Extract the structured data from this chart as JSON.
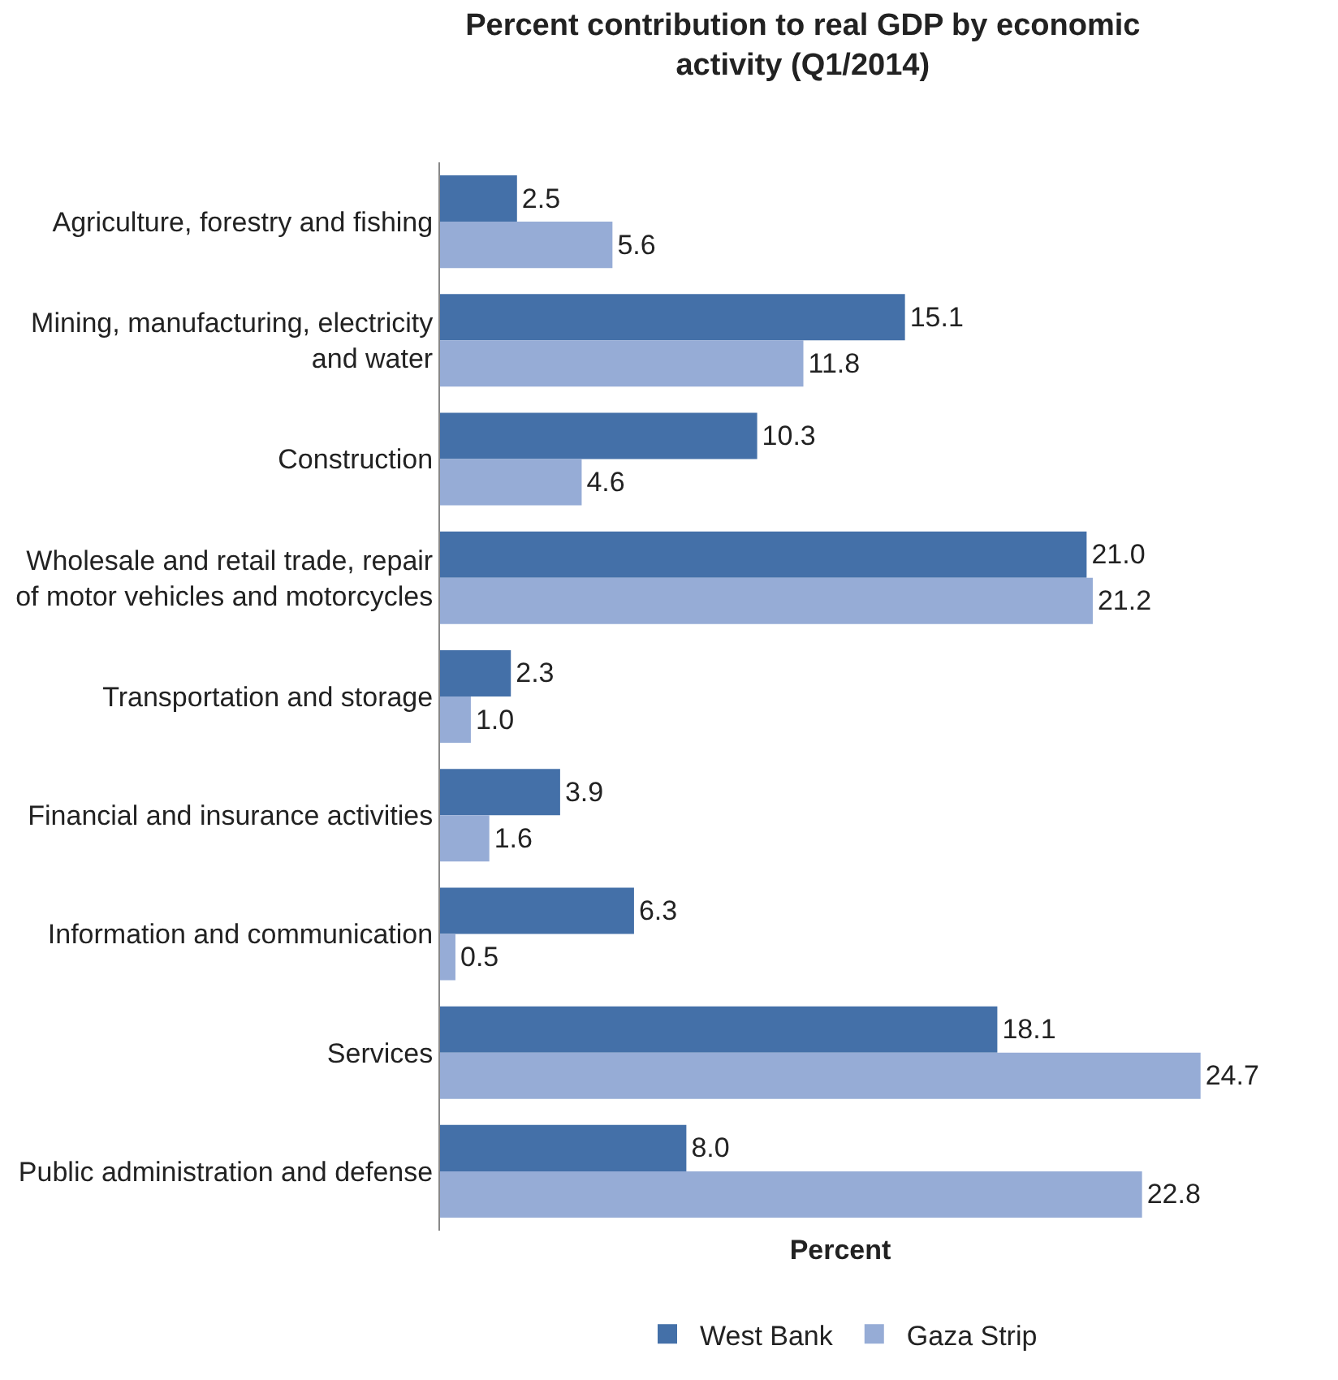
{
  "chart_data": {
    "type": "bar",
    "orientation": "horizontal",
    "title": "Percent contribution to real GDP by economic activity (Q1/2014)",
    "xlabel": "Percent",
    "categories": [
      "Agriculture, forestry and fishing",
      "Mining, manufacturing, electricity and water",
      "Construction",
      "Wholesale and retail trade, repair of motor vehicles and motorcycles",
      "Transportation and storage",
      "Financial and insurance activities",
      "Information and communication",
      "Services",
      "Public administration and defense"
    ],
    "series": [
      {
        "name": "West Bank",
        "color": "#4470a8",
        "values": [
          2.5,
          15.1,
          10.3,
          21.0,
          2.3,
          3.9,
          6.3,
          18.1,
          8.0
        ],
        "value_labels": [
          "2.5",
          "15.1",
          "10.3",
          "21.0",
          "2.3",
          "3.9",
          "6.3",
          "18.1",
          "8.0"
        ]
      },
      {
        "name": "Gaza Strip",
        "color": "#96acd6",
        "values": [
          5.6,
          11.8,
          4.6,
          21.2,
          1.0,
          1.6,
          0.5,
          24.7,
          22.8
        ],
        "value_labels": [
          "5.6",
          "11.8",
          "4.6",
          "21.2",
          "1.0",
          "1.6",
          "0.5",
          "24.7",
          "22.8"
        ]
      }
    ],
    "legend": "bottom",
    "tick_labels": "y"
  }
}
